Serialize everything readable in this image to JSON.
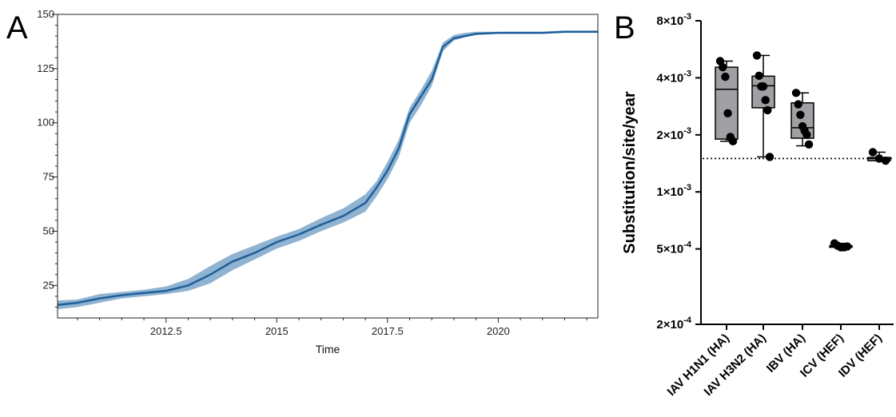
{
  "panels": {
    "a_letter": "A",
    "b_letter": "B"
  },
  "colors": {
    "line": "#1f5f9a",
    "band": "#8fb3d1",
    "box_fill": "#a0a0a4",
    "dots": "#000000"
  },
  "chart_data": [
    {
      "id": "A",
      "type": "line",
      "xlabel": "Time",
      "ylabel": "",
      "xlim": [
        2010.05,
        2022.25
      ],
      "ylim": [
        10,
        150
      ],
      "xticks": [
        2012.5,
        2015,
        2017.5,
        2020
      ],
      "xtick_labels": [
        "2012.5",
        "2015",
        "2017.5",
        "2020"
      ],
      "yticks": [
        25,
        50,
        75,
        100,
        125,
        150
      ],
      "ytick_labels": [
        "25",
        "50",
        "75",
        "100",
        "125",
        "150"
      ],
      "grid": false,
      "series": [
        {
          "x": [
            2010.05,
            2010.5,
            2011.0,
            2011.5,
            2012.0,
            2012.5,
            2013.0,
            2013.5,
            2014.0,
            2014.5,
            2015.0,
            2015.5,
            2016.0,
            2016.5,
            2017.0,
            2017.25,
            2017.5,
            2017.75,
            2018.0,
            2018.25,
            2018.5,
            2018.75,
            2019.0,
            2019.25,
            2019.5,
            2020.0,
            2020.5,
            2021.0,
            2021.5,
            2022.0,
            2022.25
          ],
          "y": [
            16,
            17,
            19,
            20.5,
            21.5,
            22.5,
            25,
            30,
            36,
            40,
            45,
            48.5,
            53,
            57,
            63,
            70,
            78,
            88,
            104,
            112,
            120,
            135,
            139,
            140,
            141,
            141.5,
            141.5,
            141.5,
            142,
            142,
            142
          ],
          "lower": [
            14,
            15,
            17,
            19,
            20,
            21,
            22.5,
            26,
            32,
            37,
            42,
            45.5,
            50,
            54,
            59,
            66,
            74,
            84,
            100,
            108,
            117,
            133,
            138,
            139.5,
            140.5,
            141,
            141,
            141,
            141.5,
            141.5,
            141.5
          ],
          "upper": [
            18,
            18.5,
            21,
            22,
            23,
            24.5,
            28,
            34,
            39.5,
            43.5,
            47.5,
            51,
            56,
            60.5,
            67,
            73,
            82,
            92,
            107,
            115,
            124,
            137,
            140.5,
            141.5,
            142,
            142,
            142,
            142,
            142.5,
            142.5,
            142.5
          ]
        }
      ]
    },
    {
      "id": "B",
      "type": "box",
      "ylabel": "Substitution/site/year",
      "yscale": "log",
      "ylim": [
        0.0002,
        0.008
      ],
      "yticks": [
        0.0002,
        0.0005,
        0.001,
        0.002,
        0.004,
        0.008
      ],
      "ytick_labels": [
        {
          "mant": "2",
          "exp": "-4"
        },
        {
          "mant": "5",
          "exp": "-4"
        },
        {
          "mant": "1",
          "exp": "-3"
        },
        {
          "mant": "2",
          "exp": "-3"
        },
        {
          "mant": "4",
          "exp": "-3"
        },
        {
          "mant": "8",
          "exp": "-3"
        }
      ],
      "reference_line": 0.0015,
      "categories": [
        "IAV H1N1 (HA)",
        "IAV H3N2 (HA)",
        "IBV (HA)",
        "ICV (HEF)",
        "IDV (HEF)"
      ],
      "boxes": [
        {
          "min": 0.00185,
          "q1": 0.0019,
          "median": 0.00348,
          "q3": 0.00455,
          "max": 0.0049,
          "points": [
            0.0049,
            0.00455,
            0.00405,
            0.0026,
            0.00195,
            0.00185
          ]
        },
        {
          "min": 0.00153,
          "q1": 0.00278,
          "median": 0.00363,
          "q3": 0.00408,
          "max": 0.00525,
          "points": [
            0.00525,
            0.0041,
            0.0036,
            0.0036,
            0.00305,
            0.0027,
            0.00153
          ]
        },
        {
          "min": 0.00175,
          "q1": 0.00192,
          "median": 0.00218,
          "q3": 0.00295,
          "max": 0.00333,
          "points": [
            0.00333,
            0.0029,
            0.00255,
            0.00222,
            0.0021,
            0.002,
            0.00178
          ]
        },
        {
          "min": 0.000505,
          "q1": 0.00051,
          "median": 0.000515,
          "q3": 0.00052,
          "max": 0.000535,
          "points": [
            0.000535,
            0.00052,
            0.00051,
            0.00051,
            0.000515
          ]
        },
        {
          "min": 0.00146,
          "q1": 0.00146,
          "median": 0.0015,
          "q3": 0.00152,
          "max": 0.00162,
          "points": [
            0.00162,
            0.0015,
            0.00146
          ]
        }
      ]
    }
  ]
}
